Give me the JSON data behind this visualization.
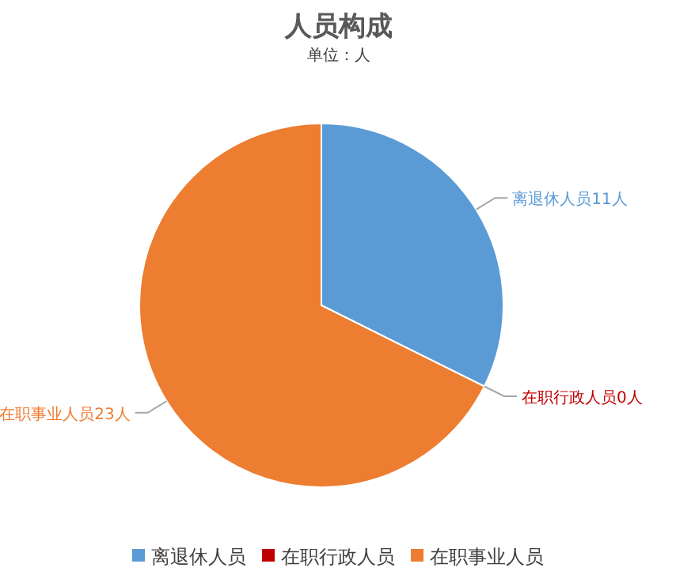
{
  "chart_data": {
    "type": "pie",
    "title": "人员构成",
    "subtitle": "单位：人",
    "categories": [
      "离退休人员",
      "在职行政人员",
      "在职事业人员"
    ],
    "values": [
      11,
      0,
      23
    ],
    "colors": [
      "#5b9bd5",
      "#c00000",
      "#ed7d31"
    ],
    "value_labels": [
      "离退休人员11人",
      "在职行政人员0人",
      "在职事业人员23人"
    ],
    "legend": "bottom"
  }
}
